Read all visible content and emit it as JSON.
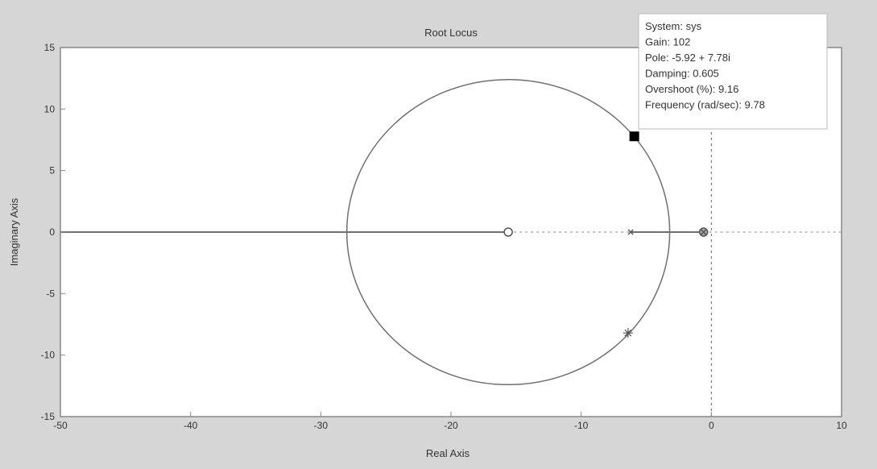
{
  "chart_data": {
    "type": "line",
    "title": "Root Locus",
    "xlabel": "Real Axis",
    "ylabel": "Imaginary Axis",
    "xlim": [
      -50,
      10
    ],
    "ylim": [
      -15,
      15
    ],
    "xticks": [
      -50,
      -40,
      -30,
      -20,
      -10,
      0,
      10
    ],
    "yticks": [
      -15,
      -10,
      -5,
      0,
      5,
      10,
      15
    ],
    "grid": false,
    "locus_circle": {
      "center": [
        -15.6,
        0
      ],
      "radius": 12.4
    },
    "real_axis_locus_segments": [
      [
        -50,
        -15.6
      ],
      [
        -6.2,
        -0.6
      ]
    ],
    "dashed_segments": [
      [
        -15.6,
        -6.2
      ],
      [
        -0.6,
        10
      ]
    ],
    "zeros": [
      [
        -15.6,
        0
      ],
      [
        -0.6,
        0
      ]
    ],
    "poles": [
      [
        -6.2,
        0
      ],
      [
        -0.6,
        0
      ]
    ],
    "closed_loop_marker": [
      -6.4,
      -8.2
    ],
    "selected_point": [
      -5.92,
      7.78
    ],
    "colors": {
      "line": "#707070",
      "background": "#d6d6d6",
      "axes": "#ffffff",
      "marker": "#000000"
    },
    "datatip": {
      "lines": [
        "System: sys",
        "Gain: 102",
        "Pole: -5.92 + 7.78i",
        "Damping: 0.605",
        "Overshoot (%): 9.16",
        "Frequency (rad/sec): 9.78"
      ]
    }
  }
}
